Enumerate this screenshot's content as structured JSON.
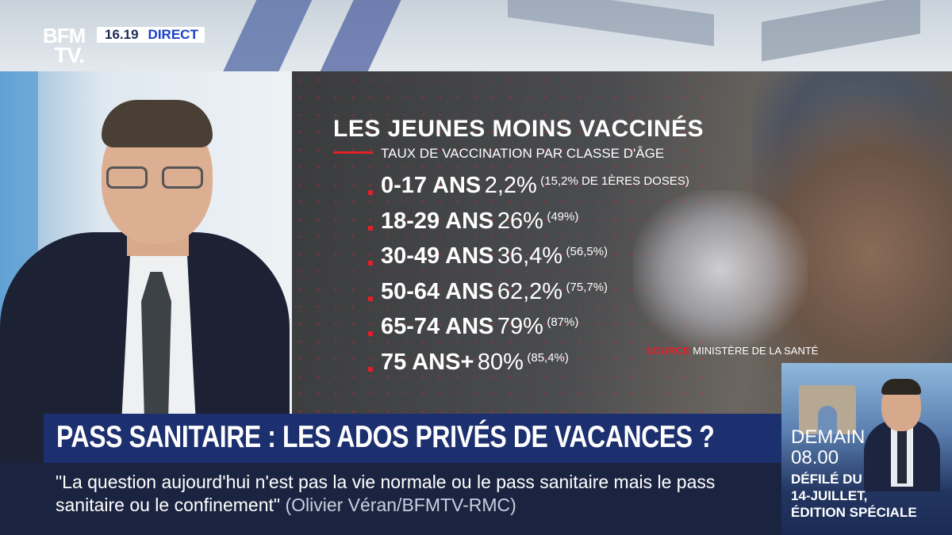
{
  "channel": {
    "logo_line1": "BFM",
    "logo_line2": "TV.",
    "time": "16.19",
    "live_label": "DIRECT"
  },
  "infographic": {
    "title": "LES JEUNES MOINS VACCINÉS",
    "subtitle": "TAUX DE VACCINATION PAR CLASSE D'ÂGE",
    "rows": [
      {
        "age": "0-17 ANS",
        "pct": "2,2%",
        "first_doses": "(15,2% DE 1ÈRES DOSES)"
      },
      {
        "age": "18-29 ANS",
        "pct": "26%",
        "first_doses": "(49%)"
      },
      {
        "age": "30-49 ANS",
        "pct": "36,4%",
        "first_doses": "(56,5%)"
      },
      {
        "age": "50-64 ANS",
        "pct": "62,2%",
        "first_doses": "(75,7%)"
      },
      {
        "age": "65-74 ANS",
        "pct": "79%",
        "first_doses": "(87%)"
      },
      {
        "age": "75 ANS+",
        "pct": "80%",
        "first_doses": "(85,4%)"
      }
    ],
    "source_label": "SOURCE",
    "source_value": "MINISTÈRE DE LA SANTÉ"
  },
  "headline": "PASS SANITAIRE : LES ADOS PRIVÉS DE VACANCES ?",
  "quote": {
    "text": "\"La question aujourd'hui n'est pas la vie normale ou le pass sanitaire mais le pass sanitaire ou le confinement\"",
    "source": "(Olivier Véran/BFMTV-RMC)"
  },
  "promo": {
    "day": "DEMAIN",
    "time": "08.00",
    "show_line1": "DÉFILÉ DU",
    "show_line2": "14-JUILLET,",
    "show_line3": "ÉDITION SPÉCIALE"
  },
  "colors": {
    "accent_red": "#e0202a",
    "headline_blue": "#1c2f6e",
    "live_blue": "#1940c8"
  }
}
